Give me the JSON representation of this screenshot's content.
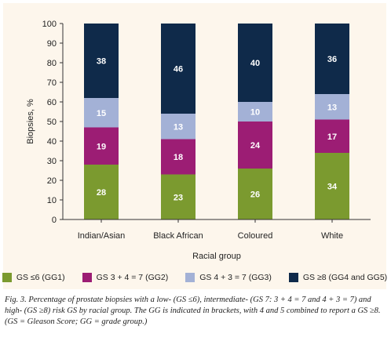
{
  "chart_data": {
    "type": "bar",
    "stacked": true,
    "categories": [
      "Indian/Asian",
      "Black African",
      "Coloured",
      "White"
    ],
    "series": [
      {
        "name": "GS ≤6 (GG1)",
        "color": "#7b9a2f",
        "values": [
          28,
          23,
          26,
          34
        ]
      },
      {
        "name": "GS 3 + 4 = 7 (GG2)",
        "color": "#9c1d74",
        "values": [
          19,
          18,
          24,
          17
        ]
      },
      {
        "name": "GS 4 + 3 = 7 (GG3)",
        "color": "#a3b1d6",
        "values": [
          15,
          13,
          10,
          13
        ]
      },
      {
        "name": "GS ≥8 (GG4 and GG5)",
        "color": "#0f2a4a",
        "values": [
          38,
          46,
          40,
          36
        ]
      }
    ],
    "xlabel": "Racial group",
    "ylabel": "Biopsies, %",
    "ylim": [
      0,
      100
    ],
    "yticks": [
      0,
      10,
      20,
      30,
      40,
      50,
      60,
      70,
      80,
      90,
      100
    ],
    "legend_position": "bottom"
  },
  "caption": "Fig. 3. Percentage of prostate biopsies with a low- (GS ≤6), intermediate- (GS 7: 3 + 4 = 7 and 4 + 3 = 7) and high- (GS ≥8) risk GS by racial group. The GG is indicated in brackets, with 4 and 5 combined to report a GS ≥8. (GS = Gleason Score; GG = grade group.)"
}
